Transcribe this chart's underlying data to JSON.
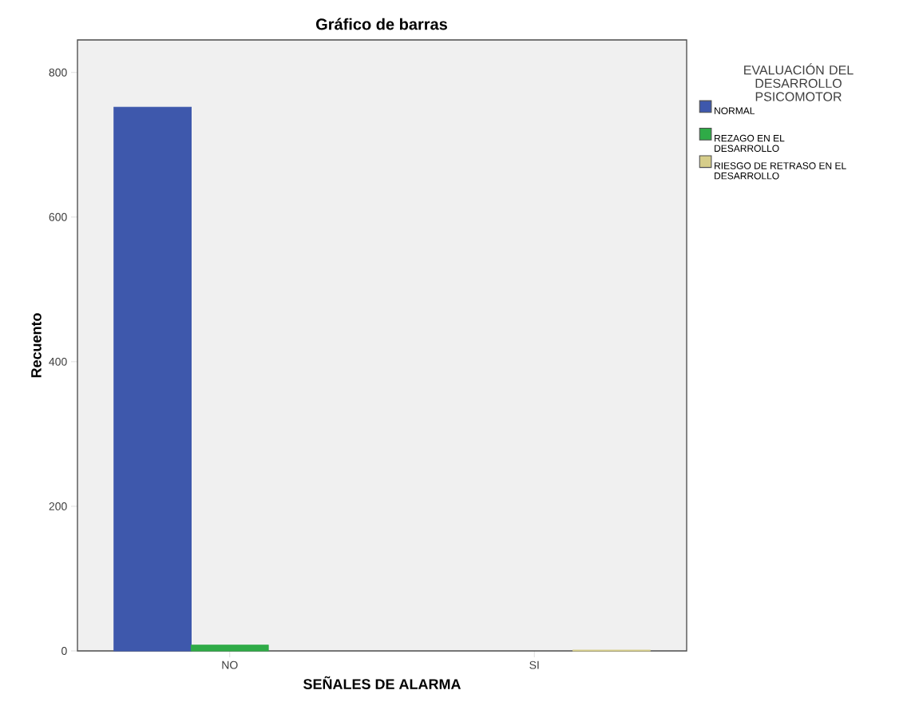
{
  "chart_data": {
    "type": "bar",
    "title": "Gráfico de barras",
    "xlabel": "SEÑALES DE ALARMA",
    "ylabel": "Recuento",
    "legend_title": "EVALUACIÓN DEL DESARROLLO PSICOMOTOR",
    "categories": [
      "NO",
      "SI"
    ],
    "series": [
      {
        "name": "NORMAL",
        "color": "#3e58ac",
        "values": [
          752,
          null
        ]
      },
      {
        "name": "REZAGO EN EL DESARROLLO",
        "color": "#2fab47",
        "values": [
          8,
          null
        ]
      },
      {
        "name": "RIESGO DE RETRASO EN EL DESARROLLO",
        "color": "#d6cd8a",
        "values": [
          null,
          1
        ]
      }
    ],
    "ylim": [
      0,
      845
    ],
    "yticks": [
      0,
      200,
      400,
      600,
      800
    ],
    "legend": "right"
  }
}
